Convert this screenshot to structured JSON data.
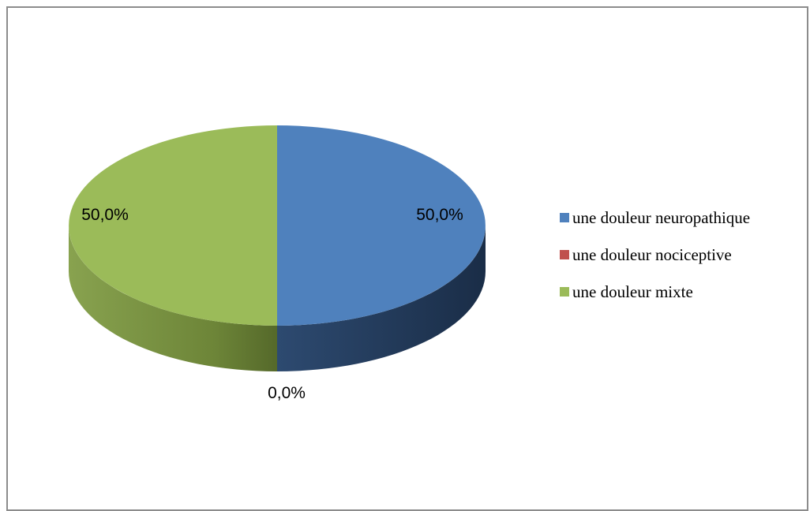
{
  "chart_data": {
    "type": "pie",
    "categories": [
      "une douleur neuropathique",
      "une douleur nociceptive",
      "une douleur mixte"
    ],
    "values": [
      50.0,
      0.0,
      50.0
    ],
    "labels": [
      "50,0%",
      "0,0%",
      "50,0%"
    ],
    "colors": [
      "#4f81bd",
      "#c0504d",
      "#9bbb59"
    ],
    "side_colors": [
      "#1f3553",
      "#7a2c2a",
      "#5d7233"
    ],
    "legend_position": "right",
    "style": "3d"
  }
}
